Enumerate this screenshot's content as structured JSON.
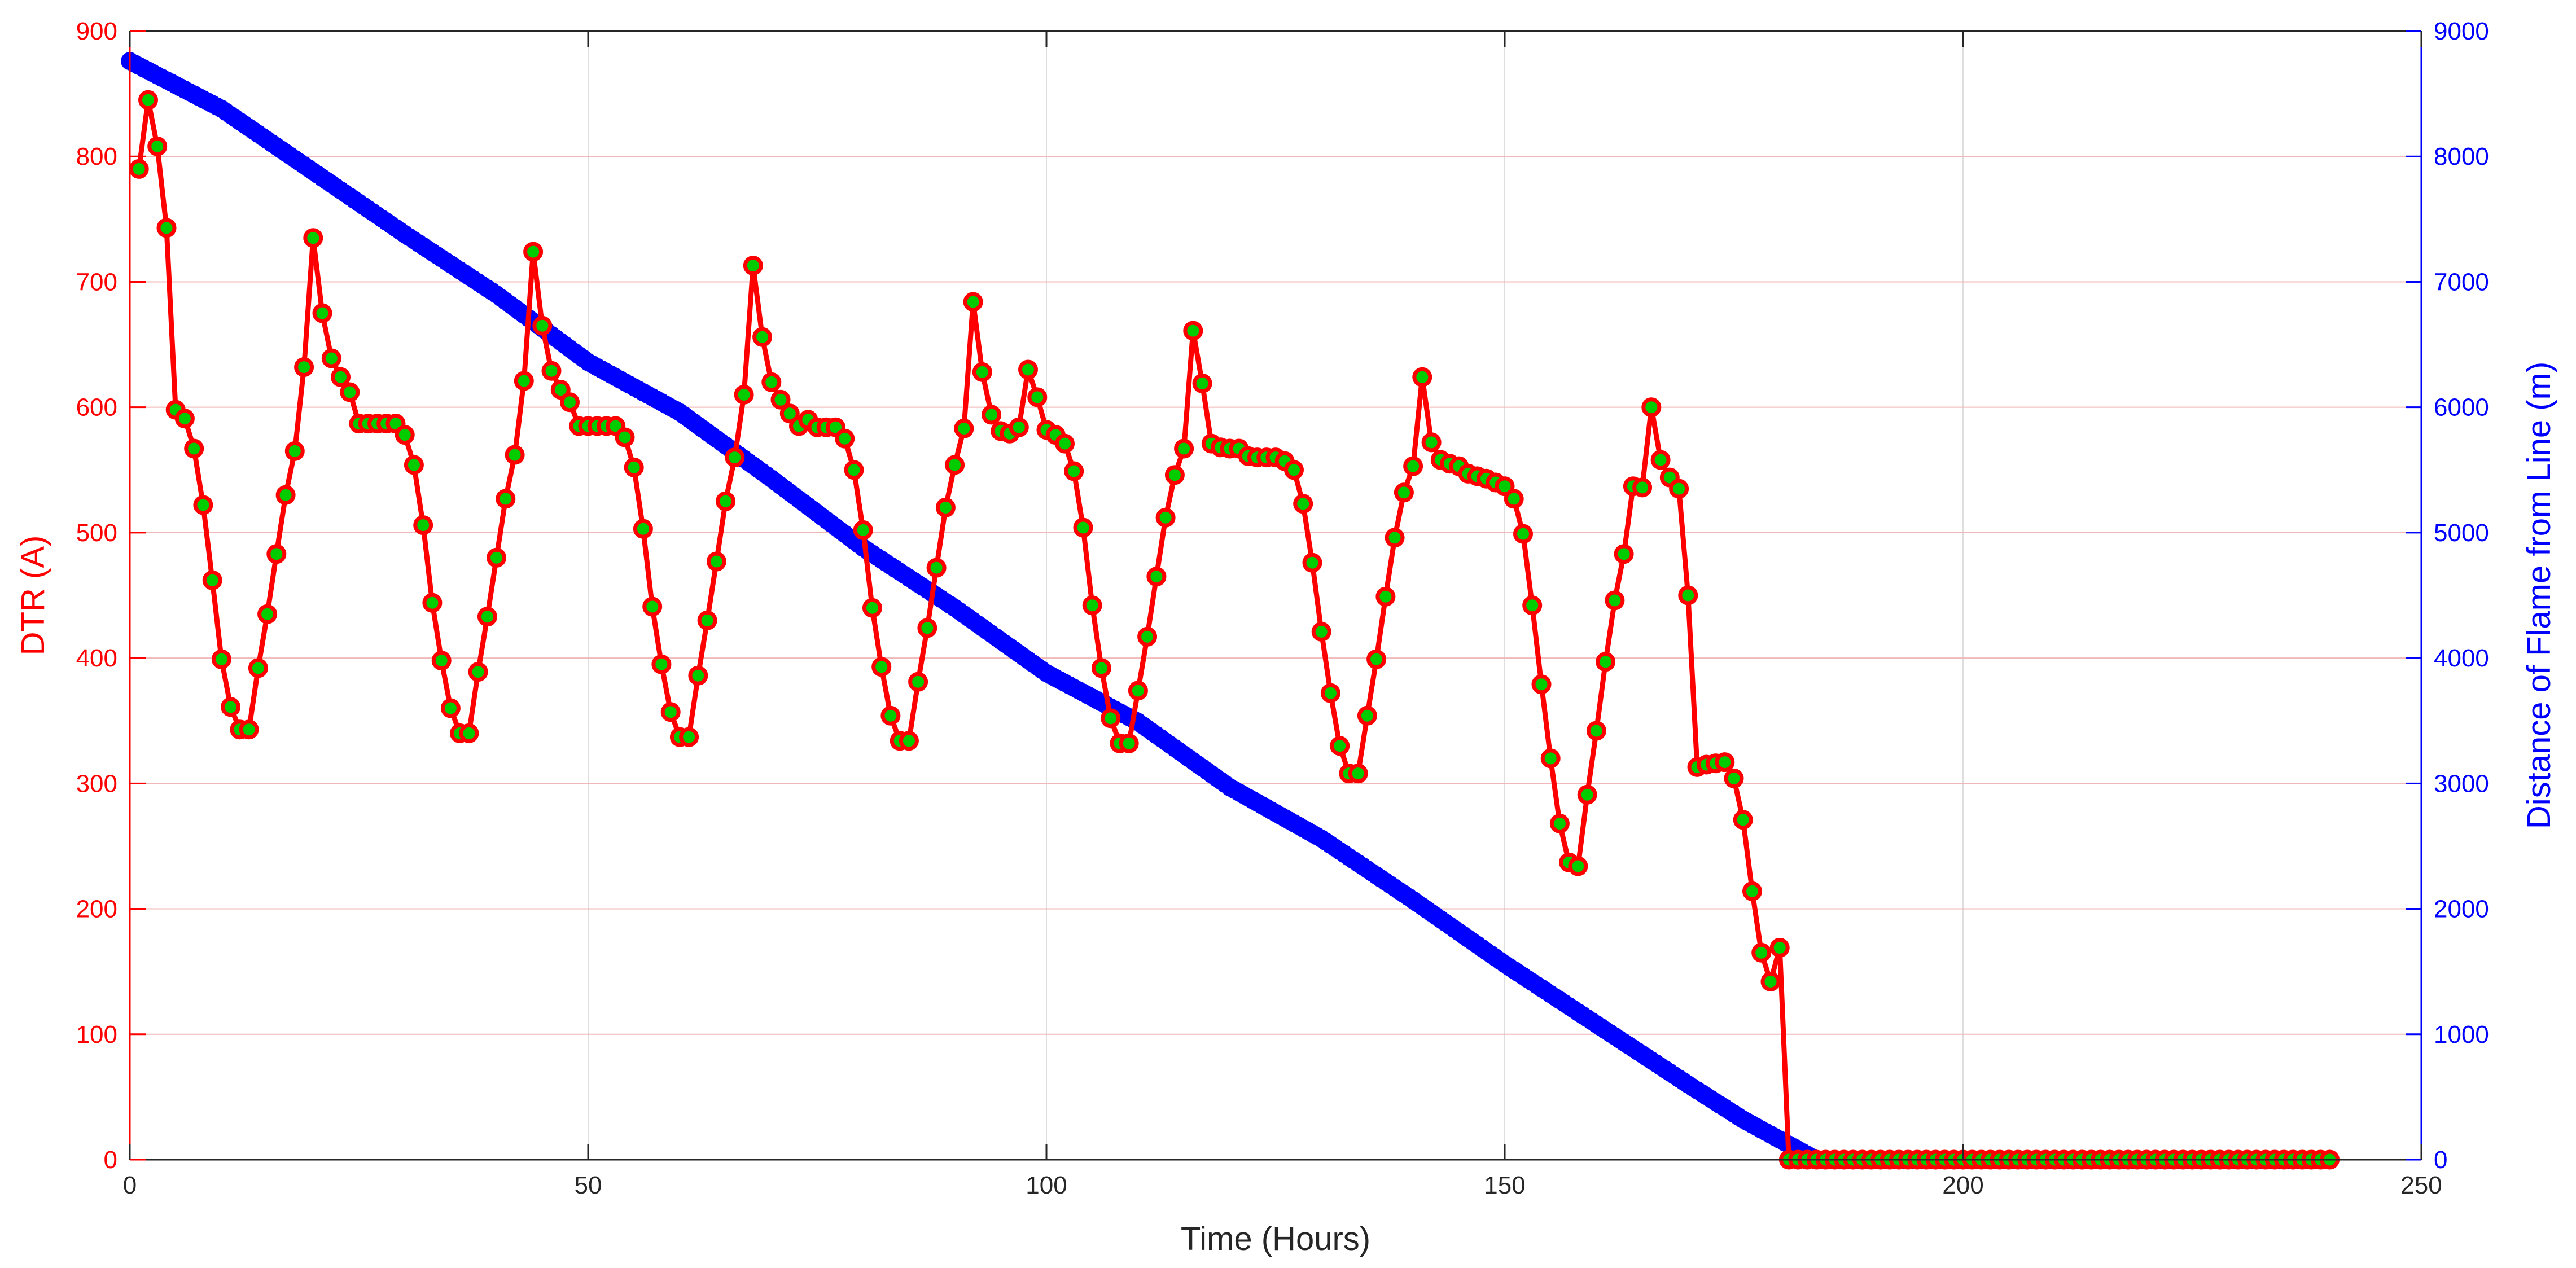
{
  "chart_data": {
    "type": "line",
    "xlabel": "Time (Hours)",
    "ylabel_left": "DTR (A)",
    "ylabel_right": "Distance of Flame from Line (m)",
    "xlim": [
      0,
      250
    ],
    "ylim_left": [
      0,
      900
    ],
    "ylim_right": [
      0,
      9000
    ],
    "x_ticks": [
      0,
      50,
      100,
      150,
      200,
      250
    ],
    "y_left_ticks": [
      0,
      100,
      200,
      300,
      400,
      500,
      600,
      700,
      800,
      900
    ],
    "y_right_ticks": [
      0,
      1000,
      2000,
      3000,
      4000,
      5000,
      6000,
      7000,
      8000,
      9000
    ],
    "grid": true,
    "colors": {
      "left_axis": "#ff0000",
      "right_axis": "#0000ff",
      "dtr_line": "#ff0000",
      "dtr_marker_fill": "#00cc00",
      "distance_line": "#0000ff",
      "grid": "#f0b8b8",
      "x_axis": "#262626"
    },
    "series": [
      {
        "axis": "left",
        "x_start": 1,
        "x_step": 1,
        "values": [
          790,
          845,
          808,
          743,
          598,
          591,
          567,
          522,
          462,
          399,
          361,
          343,
          343,
          392,
          435,
          483,
          530,
          565,
          632,
          735,
          675,
          639,
          624,
          612,
          587,
          587,
          587,
          587,
          587,
          578,
          554,
          506,
          444,
          398,
          360,
          340,
          340,
          389,
          433,
          480,
          527,
          562,
          621,
          724,
          665,
          629,
          614,
          604,
          585,
          585,
          585,
          585,
          585,
          576,
          552,
          503,
          441,
          395,
          357,
          337,
          337,
          386,
          430,
          477,
          525,
          560,
          610,
          713,
          656,
          620,
          606,
          595,
          585,
          590,
          584,
          584,
          584,
          575,
          550,
          502,
          440,
          393,
          354,
          334,
          334,
          381,
          424,
          472,
          520,
          554,
          583,
          684,
          628,
          594,
          581,
          579,
          584,
          630,
          608,
          582,
          578,
          571,
          549,
          504,
          442,
          392,
          352,
          332,
          332,
          374,
          417,
          465,
          512,
          546,
          567,
          661,
          619,
          571,
          568,
          567,
          567,
          561,
          560,
          560,
          560,
          557,
          550,
          523,
          476,
          421,
          372,
          330,
          308,
          308,
          354,
          399,
          449,
          496,
          532,
          553,
          624,
          572,
          558,
          555,
          553,
          547,
          545,
          543,
          540,
          537,
          527,
          499,
          442,
          379,
          320,
          268,
          237,
          234,
          291,
          342,
          397,
          446,
          483,
          537,
          536,
          600,
          558,
          544,
          535,
          450,
          313,
          315,
          316,
          317,
          304,
          271,
          214,
          165,
          142,
          169,
          0,
          0,
          0,
          0,
          0,
          0,
          0,
          0,
          0,
          0,
          0,
          0,
          0,
          0,
          0,
          0,
          0,
          0,
          0,
          0,
          0,
          0,
          0,
          0,
          0,
          0,
          0,
          0,
          0,
          0,
          0,
          0,
          0,
          0,
          0,
          0,
          0,
          0,
          0,
          0,
          0,
          0,
          0,
          0,
          0,
          0,
          0,
          0,
          0,
          0,
          0,
          0,
          0,
          0,
          0,
          0,
          0,
          0,
          0,
          0
        ]
      },
      {
        "axis": "right",
        "x_start": 0,
        "x_end": 240,
        "x_step": 0.5,
        "points": [
          [
            0,
            8760
          ],
          [
            10,
            8380
          ],
          [
            20,
            7880
          ],
          [
            30,
            7380
          ],
          [
            40,
            6900
          ],
          [
            50,
            6360
          ],
          [
            60,
            5960
          ],
          [
            70,
            5430
          ],
          [
            80,
            4880
          ],
          [
            90,
            4400
          ],
          [
            100,
            3880
          ],
          [
            110,
            3490
          ],
          [
            120,
            2970
          ],
          [
            130,
            2560
          ],
          [
            140,
            2070
          ],
          [
            150,
            1560
          ],
          [
            160,
            1080
          ],
          [
            170,
            600
          ],
          [
            176,
            320
          ],
          [
            182,
            80
          ],
          [
            184,
            0
          ],
          [
            240,
            0
          ]
        ]
      }
    ]
  }
}
